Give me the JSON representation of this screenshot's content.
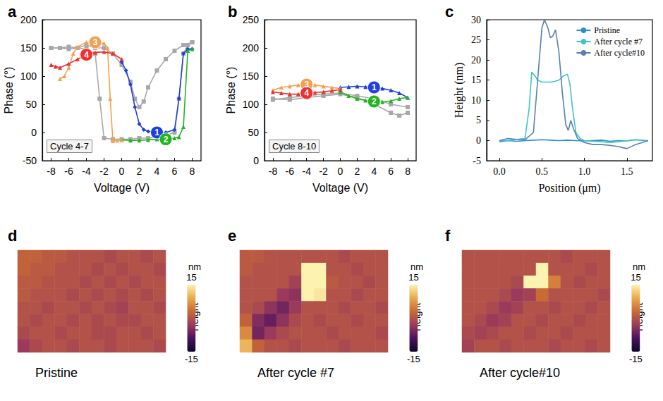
{
  "chart_data": [
    {
      "type": "line",
      "label": "a",
      "annotation": "Cycle 4-7",
      "x_label": "Voltage (V)",
      "y_label": "Phase (°)",
      "xlim": [
        -9,
        9
      ],
      "xticks": [
        -8,
        -6,
        -4,
        -2,
        0,
        2,
        4,
        6,
        8
      ],
      "ylim": [
        -50,
        200
      ],
      "yticks": [
        -50,
        0,
        50,
        100,
        150,
        200
      ],
      "grid": false,
      "series": [
        {
          "color": "#a8a8a8",
          "marker": "square",
          "x": [
            -8,
            -7,
            -6,
            -5,
            -4,
            -3,
            -2.5,
            -2,
            -1,
            0,
            1,
            2,
            3,
            4,
            5,
            6,
            6.5,
            7,
            7.5,
            8
          ],
          "values": [
            150,
            150,
            152,
            150,
            148,
            140,
            60,
            -10,
            -12,
            -12,
            -12,
            -10,
            -10,
            -8,
            -5,
            0,
            60,
            140,
            155,
            160
          ]
        },
        {
          "color": "#a8a8a8",
          "marker": "square",
          "x": [
            8,
            7,
            6,
            5,
            4,
            3,
            2.5,
            2,
            1.5,
            1,
            0,
            -1,
            -2,
            -3,
            -4,
            -5,
            -6,
            -7,
            -8
          ],
          "values": [
            160,
            155,
            145,
            130,
            110,
            80,
            55,
            45,
            60,
            90,
            120,
            140,
            150,
            150,
            155,
            150,
            148,
            150,
            150
          ]
        },
        {
          "name": "1",
          "color": "#1f3fe0",
          "marker": "diamond",
          "x": [
            0,
            0.5,
            1,
            1.5,
            2,
            2.5,
            3,
            4,
            5,
            6,
            6.5,
            7,
            7.5,
            8
          ],
          "values": [
            125,
            110,
            85,
            45,
            15,
            5,
            2,
            0,
            0,
            5,
            60,
            140,
            148,
            148
          ]
        },
        {
          "name": "2",
          "color": "#22b522",
          "marker": "triangle",
          "x": [
            8,
            7.5,
            7,
            6.5,
            6,
            5,
            4,
            3,
            2,
            1,
            0
          ],
          "values": [
            148,
            145,
            10,
            -8,
            -10,
            -12,
            -12,
            -13,
            -14,
            -14,
            -13
          ]
        },
        {
          "name": "3",
          "color": "#f5a050",
          "marker": "triangle",
          "x": [
            0,
            -0.5,
            -1,
            -1.3,
            -1.6,
            -2,
            -3,
            -4,
            -5,
            -5.5,
            -6,
            -6.5,
            -7
          ],
          "values": [
            -13,
            -14,
            -15,
            60,
            150,
            158,
            160,
            160,
            152,
            140,
            115,
            100,
            95
          ]
        },
        {
          "name": "4",
          "color": "#f03030",
          "marker": "triangle",
          "x": [
            -8,
            -7.5,
            -7,
            -6,
            -5,
            -4,
            -3,
            -2,
            -1,
            0
          ],
          "values": [
            120,
            117,
            115,
            122,
            130,
            138,
            142,
            143,
            140,
            130
          ]
        }
      ]
    },
    {
      "type": "line",
      "label": "b",
      "annotation": "Cycle 8-10",
      "x_label": "Voltage (V)",
      "y_label": "Phase (°)",
      "xlim": [
        -9,
        9
      ],
      "xticks": [
        -8,
        -6,
        -4,
        -2,
        0,
        2,
        4,
        6,
        8
      ],
      "ylim": [
        0,
        250
      ],
      "yticks": [
        0,
        50,
        100,
        150,
        200,
        250
      ],
      "grid": false,
      "series": [
        {
          "color": "#a8a8a8",
          "marker": "square",
          "x": [
            -8,
            -6,
            -4,
            -2,
            0,
            2,
            4,
            6,
            7,
            8
          ],
          "values": [
            110,
            108,
            112,
            115,
            118,
            112,
            100,
            85,
            80,
            85
          ]
        },
        {
          "color": "#a8a8a8",
          "marker": "square",
          "x": [
            8,
            6,
            4,
            2,
            0,
            -2,
            -4,
            -6,
            -8
          ],
          "values": [
            95,
            100,
            110,
            115,
            120,
            118,
            115,
            112,
            108
          ]
        },
        {
          "name": "1",
          "color": "#1f3fe0",
          "marker": "triangle",
          "x": [
            0,
            1,
            2,
            3,
            4,
            5,
            6,
            7,
            8
          ],
          "values": [
            130,
            131,
            132,
            131,
            130,
            128,
            125,
            120,
            112
          ]
        },
        {
          "name": "2",
          "color": "#22b522",
          "marker": "triangle",
          "x": [
            8,
            7,
            6,
            5,
            4,
            3,
            2,
            1,
            0
          ],
          "values": [
            112,
            110,
            106,
            104,
            105,
            107,
            110,
            115,
            122
          ]
        },
        {
          "name": "3",
          "color": "#f5a050",
          "marker": "triangle",
          "x": [
            0,
            -1,
            -2,
            -3,
            -4,
            -5,
            -6,
            -7,
            -8
          ],
          "values": [
            128,
            130,
            132,
            134,
            135,
            134,
            132,
            130,
            125
          ]
        },
        {
          "name": "4",
          "color": "#f03030",
          "marker": "triangle",
          "x": [
            -8,
            -7,
            -6,
            -5,
            -4,
            -3,
            -2,
            -1,
            0
          ],
          "values": [
            122,
            120,
            118,
            118,
            120,
            121,
            122,
            124,
            126
          ]
        }
      ]
    },
    {
      "type": "line",
      "label": "c",
      "x_label": "Position (μm)",
      "y_label": "Height (nm)",
      "xlim": [
        -0.15,
        1.8
      ],
      "xticks": [
        {
          "value": 0,
          "label": "0.0"
        },
        0.5,
        {
          "value": 1,
          "label": "1.0"
        },
        1.5
      ],
      "ylim": [
        -5,
        30
      ],
      "yticks": [
        -5,
        0,
        5,
        10,
        15,
        20,
        25,
        30
      ],
      "grid": false,
      "legend": "upper right",
      "series": [
        {
          "name": "Pristine",
          "color": "#2a8fd0",
          "marker": "none",
          "x": [
            0,
            0.1,
            0.2,
            0.3,
            0.4,
            0.5,
            0.6,
            0.7,
            0.8,
            0.9,
            1,
            1.1,
            1.2,
            1.3,
            1.4,
            1.5,
            1.6,
            1.7,
            1.75
          ],
          "values": [
            -0.3,
            0,
            -0.2,
            0,
            0.1,
            0.2,
            0.1,
            0,
            0.1,
            0,
            -0.1,
            0,
            0.1,
            -0.2,
            0,
            -0.1,
            0.2,
            0,
            -0.1
          ]
        },
        {
          "name": "After cycle #7",
          "color": "#3cc6c6",
          "marker": "none",
          "x": [
            0,
            0.1,
            0.2,
            0.3,
            0.35,
            0.38,
            0.42,
            0.45,
            0.5,
            0.55,
            0.6,
            0.65,
            0.7,
            0.75,
            0.8,
            0.83,
            0.86,
            0.9,
            0.95,
            1,
            1.1,
            1.2,
            1.3,
            1.4,
            1.5,
            1.6,
            1.75
          ],
          "values": [
            0,
            0,
            0.3,
            0.5,
            8,
            17,
            16,
            15,
            14.5,
            14.5,
            14.5,
            14.7,
            15,
            16,
            16.5,
            14,
            8,
            2,
            0.5,
            0,
            -0.2,
            -0.3,
            -0.5,
            -0.3,
            0,
            0.2,
            0
          ]
        },
        {
          "name": "After cycle#10",
          "color": "#5a7fb0",
          "marker": "none",
          "x": [
            0,
            0.1,
            0.2,
            0.3,
            0.4,
            0.45,
            0.5,
            0.53,
            0.57,
            0.6,
            0.63,
            0.66,
            0.7,
            0.74,
            0.78,
            0.81,
            0.84,
            0.87,
            0.92,
            1,
            1.1,
            1.2,
            1.3,
            1.4,
            1.5,
            1.6,
            1.75
          ],
          "values": [
            0,
            0.5,
            0.3,
            0.2,
            2,
            15,
            28,
            30,
            28,
            25.5,
            26,
            27.5,
            22,
            12,
            4,
            2.5,
            5,
            3,
            0.5,
            -0.5,
            -1,
            -1,
            -1.2,
            -1.5,
            -2,
            -1,
            0
          ]
        }
      ]
    },
    {
      "type": "heatmap",
      "label": "d",
      "caption": "Pristine",
      "tick_labels": false,
      "color_range": [
        -15,
        15
      ],
      "color_ticks": [
        -15,
        15
      ],
      "colorbar_title": "Height",
      "colorbar_unit": "nm",
      "cells": [
        [
          2,
          2,
          1,
          1,
          0,
          0,
          0,
          -1,
          0,
          0,
          -1,
          0
        ],
        [
          2,
          1,
          1,
          0,
          0,
          0,
          -1,
          0,
          -1,
          0,
          0,
          -1
        ],
        [
          1,
          1,
          0,
          0,
          0,
          -1,
          0,
          -1,
          0,
          -1,
          0,
          0
        ],
        [
          1,
          0,
          0,
          0,
          -1,
          0,
          -1,
          0,
          -1,
          0,
          -1,
          0
        ],
        [
          0,
          0,
          -1,
          0,
          0,
          -1,
          0,
          -1,
          -2,
          0,
          0,
          -1
        ],
        [
          0,
          -1,
          0,
          0,
          -1,
          0,
          -1,
          0,
          -1,
          -1,
          0,
          0
        ],
        [
          -1,
          0,
          0,
          -1,
          0,
          0,
          -1,
          -1,
          0,
          0,
          -1,
          0
        ],
        [
          -3,
          -1,
          0,
          0,
          -1,
          0,
          0,
          -1,
          0,
          0,
          0,
          -1
        ]
      ]
    },
    {
      "type": "heatmap",
      "label": "e",
      "caption": "After cycle #7",
      "tick_labels": false,
      "color_range": [
        -15,
        15
      ],
      "color_ticks": [
        -15,
        15
      ],
      "colorbar_title": "Height",
      "colorbar_unit": "nm",
      "cells": [
        [
          1,
          1,
          0,
          0,
          0,
          0,
          0,
          0,
          -1,
          0,
          0,
          0
        ],
        [
          1,
          0,
          0,
          0,
          0,
          17,
          16,
          0,
          0,
          -1,
          0,
          0
        ],
        [
          0,
          0,
          0,
          0,
          -2,
          16,
          17,
          1,
          0,
          0,
          -1,
          0
        ],
        [
          0,
          0,
          0,
          -3,
          -4,
          15,
          14,
          0,
          0,
          -1,
          0,
          0
        ],
        [
          0,
          -1,
          -4,
          -6,
          -3,
          0,
          0,
          0,
          -1,
          0,
          0,
          -1
        ],
        [
          2,
          -5,
          -7,
          -4,
          -1,
          0,
          -1,
          0,
          0,
          -1,
          0,
          0
        ],
        [
          6,
          -6,
          -3,
          -1,
          0,
          0,
          0,
          -1,
          0,
          0,
          0,
          -1
        ],
        [
          10,
          2,
          0,
          0,
          -1,
          0,
          0,
          0,
          -1,
          0,
          0,
          0
        ]
      ]
    },
    {
      "type": "heatmap",
      "label": "f",
      "caption": "After cycle#10",
      "tick_labels": false,
      "color_range": [
        -15,
        15
      ],
      "color_ticks": [
        -15,
        15
      ],
      "colorbar_title": "Height",
      "colorbar_unit": "nm",
      "cells": [
        [
          0,
          0,
          0,
          0,
          0,
          0,
          0,
          0,
          -1,
          0,
          0,
          0
        ],
        [
          0,
          0,
          0,
          0,
          0,
          0,
          30,
          0,
          0,
          0,
          -1,
          0
        ],
        [
          0,
          0,
          0,
          0,
          -1,
          25,
          27,
          5,
          0,
          -1,
          0,
          0
        ],
        [
          0,
          0,
          0,
          -1,
          -3,
          -2,
          3,
          0,
          0,
          0,
          0,
          -1
        ],
        [
          0,
          0,
          -1,
          -3,
          -2,
          0,
          0,
          -1,
          0,
          0,
          -1,
          0
        ],
        [
          0,
          -1,
          -3,
          -2,
          0,
          0,
          -1,
          0,
          0,
          -1,
          0,
          0
        ],
        [
          -1,
          -2,
          -1,
          0,
          0,
          -1,
          0,
          0,
          -1,
          0,
          0,
          0
        ],
        [
          -2,
          0,
          0,
          -1,
          0,
          0,
          0,
          -1,
          0,
          0,
          -1,
          0
        ]
      ]
    }
  ]
}
